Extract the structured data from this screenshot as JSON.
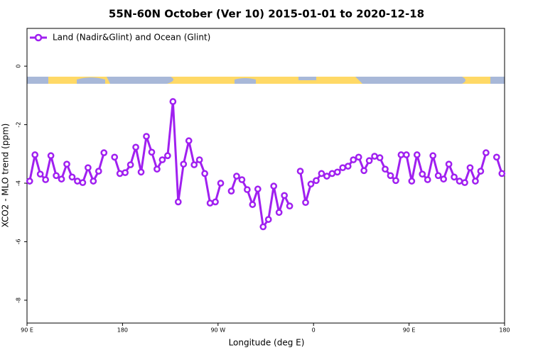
{
  "chart_data": {
    "type": "line",
    "title": "55N-60N October (Ver 10)   2015-01-01 to 2020-12-18",
    "x_label": "Longitude (deg E)",
    "y_label": "XCO2 - MLO trend (ppm)",
    "x": [
      92.5,
      97.5,
      102.5,
      107.5,
      112.5,
      117.5,
      122.5,
      127.5,
      132.5,
      137.5,
      142.5,
      147.5,
      152.5,
      157.5,
      162.5,
      167.5,
      172.5,
      177.5,
      182.5,
      187.5,
      192.5,
      197.5,
      202.5,
      207.5,
      212.5,
      217.5,
      222.5,
      227.5,
      232.5,
      237.5,
      242.5,
      247.5,
      252.5,
      257.5,
      262.5,
      267.5,
      272.5,
      277.5,
      282.5,
      287.5,
      292.5,
      297.5,
      302.5,
      307.5,
      312.5,
      317.5,
      322.5,
      327.5,
      332.5,
      337.5,
      342.5,
      347.5,
      352.5,
      357.5,
      362.5,
      367.5,
      372.5,
      377.5,
      382.5,
      387.5,
      392.5,
      397.5,
      402.5,
      407.5,
      412.5,
      417.5,
      422.5,
      427.5,
      432.5,
      437.5,
      442.5,
      447.5,
      452.5,
      457.5,
      462.5,
      467.5,
      472.5,
      477.5,
      482.5,
      487.5,
      492.5,
      497.5,
      502.5,
      507.5,
      512.5,
      517.5,
      522.5,
      527.5,
      532.5,
      537.5
    ],
    "series": [
      {
        "name": "Land (Nadir&Glint) and Ocean (Glint)",
        "color": "#a020f0",
        "values": [
          -3.93,
          -3.03,
          -3.69,
          -3.88,
          -3.06,
          -3.74,
          -3.86,
          -3.35,
          -3.79,
          -3.93,
          -3.98,
          -3.47,
          -3.93,
          -3.59,
          -2.96,
          null,
          -3.11,
          -3.67,
          -3.64,
          -3.37,
          -2.77,
          -3.62,
          -2.4,
          -2.94,
          -3.52,
          -3.2,
          -3.06,
          -1.21,
          -4.64,
          -3.35,
          -2.55,
          -3.37,
          -3.2,
          -3.67,
          -4.68,
          -4.64,
          -4.0,
          null,
          -4.27,
          -3.76,
          -3.88,
          -4.22,
          -4.73,
          -4.2,
          -5.49,
          -5.24,
          -4.1,
          -5.0,
          -4.42,
          -4.78,
          null,
          -3.59,
          -4.66,
          -4.03,
          -3.91,
          -3.67,
          -3.76,
          -3.67,
          -3.62,
          -3.47,
          -3.42,
          -3.2,
          -3.11,
          -3.57,
          -3.23,
          -3.08,
          -3.13,
          -3.52,
          -3.74,
          -3.91,
          -3.03,
          -3.03,
          -3.93,
          -3.03,
          -3.69,
          -3.88,
          -3.06,
          -3.74,
          -3.86,
          -3.35,
          -3.79,
          -3.93,
          -3.98,
          -3.47,
          -3.93,
          -3.59,
          -2.96,
          null,
          -3.11,
          -3.67
        ]
      }
    ],
    "xlim": [
      90,
      540
    ],
    "xticks": [
      {
        "value": 90,
        "label": "90 E"
      },
      {
        "value": 180,
        "label": "180"
      },
      {
        "value": 270,
        "label": "90 W"
      },
      {
        "value": 360,
        "label": "0"
      },
      {
        "value": 450,
        "label": "90 E"
      },
      {
        "value": 540,
        "label": "180"
      }
    ],
    "ylim": [
      -8.78,
      1.29
    ],
    "yticks": [
      0,
      -2,
      -4,
      -6,
      -8
    ],
    "legend": "top-left",
    "grid": false
  }
}
